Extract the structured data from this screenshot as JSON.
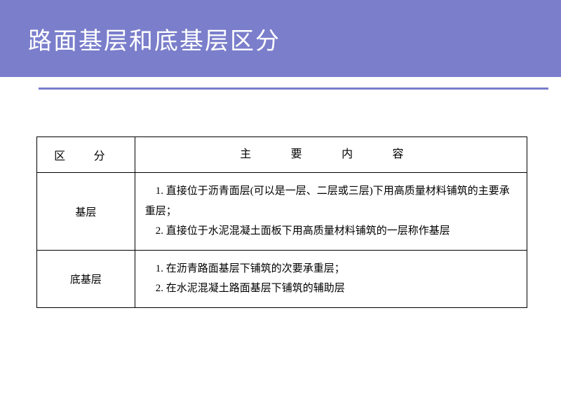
{
  "slide": {
    "title": "路面基层和底基层区分",
    "title_color": "#ffffff",
    "band_color": "#7a7ecb",
    "divider_color": "#7a7ecb",
    "background_color": "#ffffff"
  },
  "table": {
    "type": "table",
    "border_color": "#000000",
    "header_fontsize": 16,
    "body_fontsize": 15,
    "columns": [
      {
        "label": "区 分",
        "width": "20%",
        "align": "center"
      },
      {
        "label": "主 要 内 容",
        "width": "80%",
        "align": "center"
      }
    ],
    "rows": [
      {
        "category": "基层",
        "content": "　1. 直接位于沥青面层(可以是一层、二层或三层)下用高质量材料铺筑的主要承重层；\n　2. 直接位于水泥混凝土面板下用高质量材料铺筑的一层称作基层"
      },
      {
        "category": "底基层",
        "content": "　1. 在沥青路面基层下铺筑的次要承重层；\n　2. 在水泥混凝土路面基层下铺筑的辅助层"
      }
    ]
  }
}
